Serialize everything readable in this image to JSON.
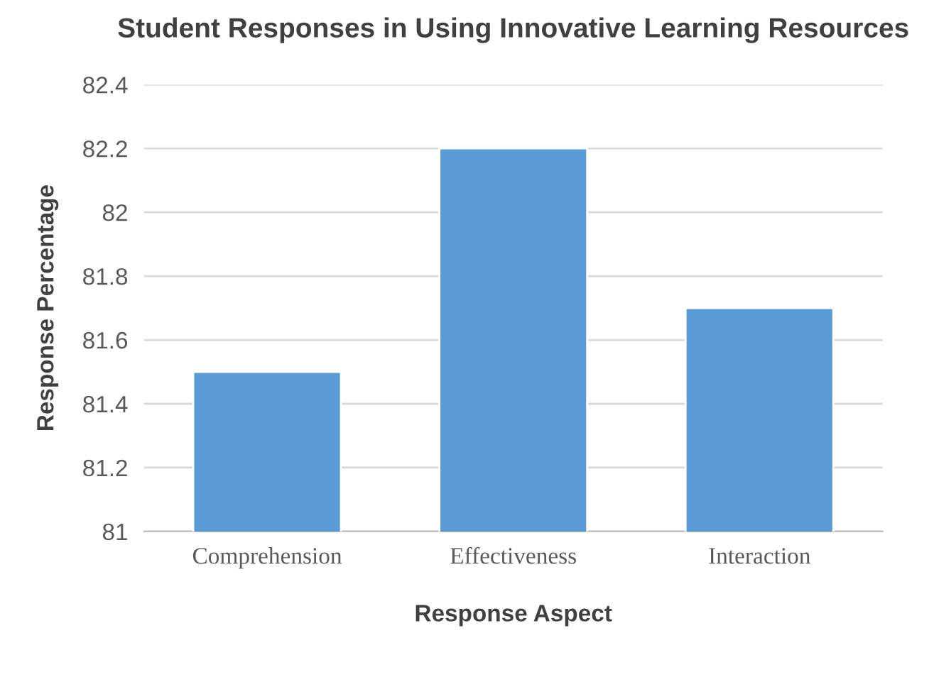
{
  "chart_data": {
    "type": "bar",
    "title": "Student Responses in Using Innovative Learning Resources",
    "xlabel": "Response Aspect",
    "ylabel": "Response Percentage",
    "categories": [
      "Comprehension",
      "Effectiveness",
      "Interaction"
    ],
    "values": [
      81.5,
      82.2,
      81.7
    ],
    "color": "#5b9bd5",
    "ylim": [
      81,
      82.4
    ],
    "yticks": [
      81,
      81.2,
      81.4,
      81.6,
      81.8,
      82,
      82.2,
      82.4
    ],
    "grid": "y",
    "legend": false
  }
}
